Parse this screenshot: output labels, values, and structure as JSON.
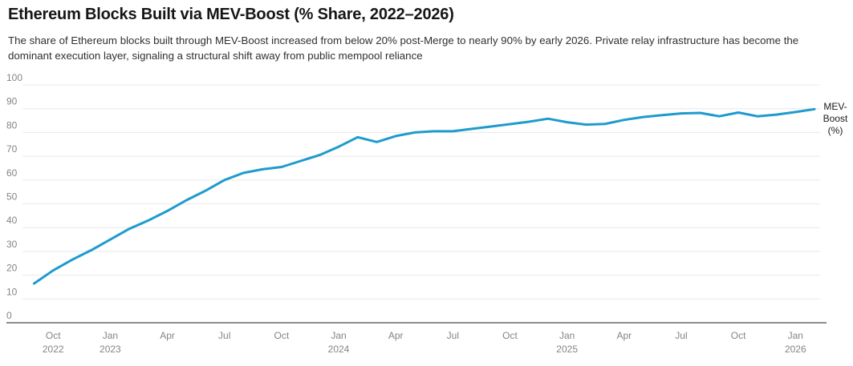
{
  "header": {
    "title": "Ethereum Blocks Built via MEV-Boost (% Share, 2022–2026)",
    "description_lines": [
      "The share of Ethereum blocks built through MEV-Boost increased from below 20% post-Merge to nearly 90% by early 2026. Private relay infrastructure has become the",
      "dominant execution layer, signaling a structural shift away from public mempool reliance"
    ]
  },
  "chart_data": {
    "type": "line",
    "title": "Ethereum Blocks Built via MEV-Boost (% Share, 2022–2026)",
    "series": [
      {
        "name": "MEV-Boost (%)",
        "end_label_lines": [
          "MEV-",
          "Boost",
          "(%)"
        ],
        "values": [
          16.5,
          22,
          26.5,
          30.5,
          35,
          39.5,
          43,
          47,
          51.5,
          55.5,
          60,
          63,
          64.5,
          65.5,
          68,
          70.5,
          74,
          78,
          76,
          78.5,
          80,
          80.5,
          80.5,
          81.5,
          82.5,
          83.5,
          84.5,
          85.8,
          84.3,
          83.3,
          83.6,
          85.3,
          86.5,
          87.3,
          88,
          88.2,
          86.8,
          88.4,
          86.8,
          87.5,
          88.6,
          89.8
        ]
      }
    ],
    "x": [
      "Sep 2022",
      "Oct 2022",
      "Nov 2022",
      "Dec 2022",
      "Jan 2023",
      "Feb 2023",
      "Mar 2023",
      "Apr 2023",
      "May 2023",
      "Jun 2023",
      "Jul 2023",
      "Aug 2023",
      "Sep 2023",
      "Oct 2023",
      "Nov 2023",
      "Dec 2023",
      "Jan 2024",
      "Feb 2024",
      "Mar 2024",
      "Apr 2024",
      "May 2024",
      "Jun 2024",
      "Jul 2024",
      "Aug 2024",
      "Sep 2024",
      "Oct 2024",
      "Nov 2024",
      "Dec 2024",
      "Jan 2025",
      "Feb 2025",
      "Mar 2025",
      "Apr 2025",
      "May 2025",
      "Jun 2025",
      "Jul 2025",
      "Aug 2025",
      "Sep 2025",
      "Oct 2025",
      "Nov 2025",
      "Dec 2025",
      "Jan 2026",
      "Feb 2026"
    ],
    "x_ticks": [
      {
        "index": 1,
        "line1": "Oct",
        "line2": "2022"
      },
      {
        "index": 4,
        "line1": "Jan",
        "line2": "2023"
      },
      {
        "index": 7,
        "line1": "Apr",
        "line2": ""
      },
      {
        "index": 10,
        "line1": "Jul",
        "line2": ""
      },
      {
        "index": 13,
        "line1": "Oct",
        "line2": ""
      },
      {
        "index": 16,
        "line1": "Jan",
        "line2": "2024"
      },
      {
        "index": 19,
        "line1": "Apr",
        "line2": ""
      },
      {
        "index": 22,
        "line1": "Jul",
        "line2": ""
      },
      {
        "index": 25,
        "line1": "Oct",
        "line2": ""
      },
      {
        "index": 28,
        "line1": "Jan",
        "line2": "2025"
      },
      {
        "index": 31,
        "line1": "Apr",
        "line2": ""
      },
      {
        "index": 34,
        "line1": "Jul",
        "line2": ""
      },
      {
        "index": 37,
        "line1": "Oct",
        "line2": ""
      },
      {
        "index": 40,
        "line1": "Jan",
        "line2": "2026"
      }
    ],
    "y_ticks": [
      0,
      10,
      20,
      30,
      40,
      50,
      60,
      70,
      80,
      90,
      100
    ],
    "ylim": [
      0,
      100
    ],
    "xlabel": "",
    "ylabel": "",
    "grid": "on",
    "legend_position": "end-of-line",
    "colors": {
      "line": "#1E9BCD",
      "gridline": "#E9E9E9",
      "axis_line": "#8C8C8C",
      "tick_text": "#848484",
      "end_label_text": "#1A1A1A"
    }
  }
}
